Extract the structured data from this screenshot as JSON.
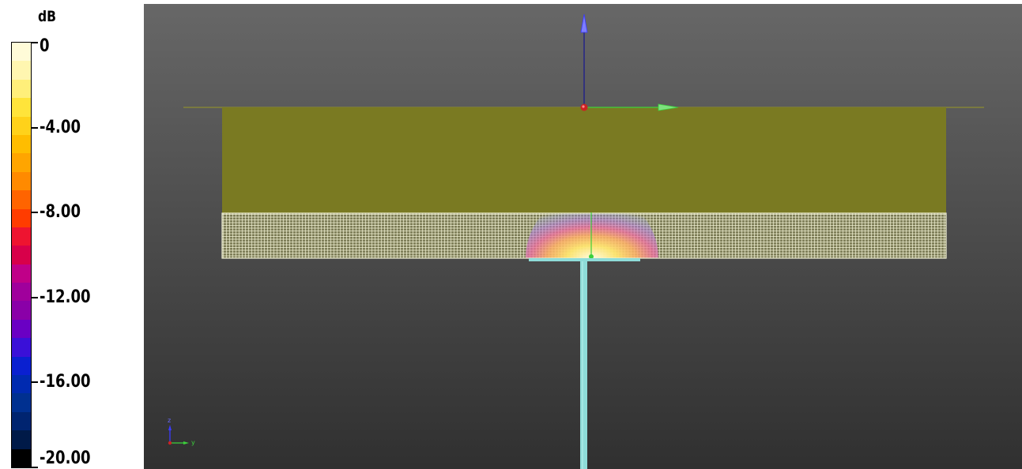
{
  "legend": {
    "unit": "dB",
    "ticks": [
      {
        "label": "0",
        "value": 0
      },
      {
        "label": "-4.00",
        "value": -4
      },
      {
        "label": "-8.00",
        "value": -8
      },
      {
        "label": "-12.00",
        "value": -12
      },
      {
        "label": "-16.00",
        "value": -16
      },
      {
        "label": "-20.00",
        "value": -20
      }
    ],
    "range": [
      -20,
      0
    ],
    "band_colors": [
      "#fffbd8",
      "#fff6b0",
      "#ffef7a",
      "#ffe43a",
      "#ffd21a",
      "#ffbd00",
      "#ffa500",
      "#ff8a00",
      "#ff6400",
      "#ff3c00",
      "#ee1430",
      "#d8004a",
      "#c00088",
      "#a0009c",
      "#8a00a8",
      "#6a00c4",
      "#3a10d8",
      "#0a20d0",
      "#002ab0",
      "#003090",
      "#002470",
      "#001a48",
      "#000000"
    ]
  },
  "scene": {
    "background_top": "#676767",
    "background_bottom": "#303030",
    "medium_color": "#7a7a22",
    "grid_color": "#f0f0d2",
    "arrow_z_color": "#3b3bff",
    "arrow_y_color": "#3cd03c",
    "probe_color": "#8edcd8",
    "triad_labels": {
      "z": "z",
      "y": "y"
    }
  }
}
